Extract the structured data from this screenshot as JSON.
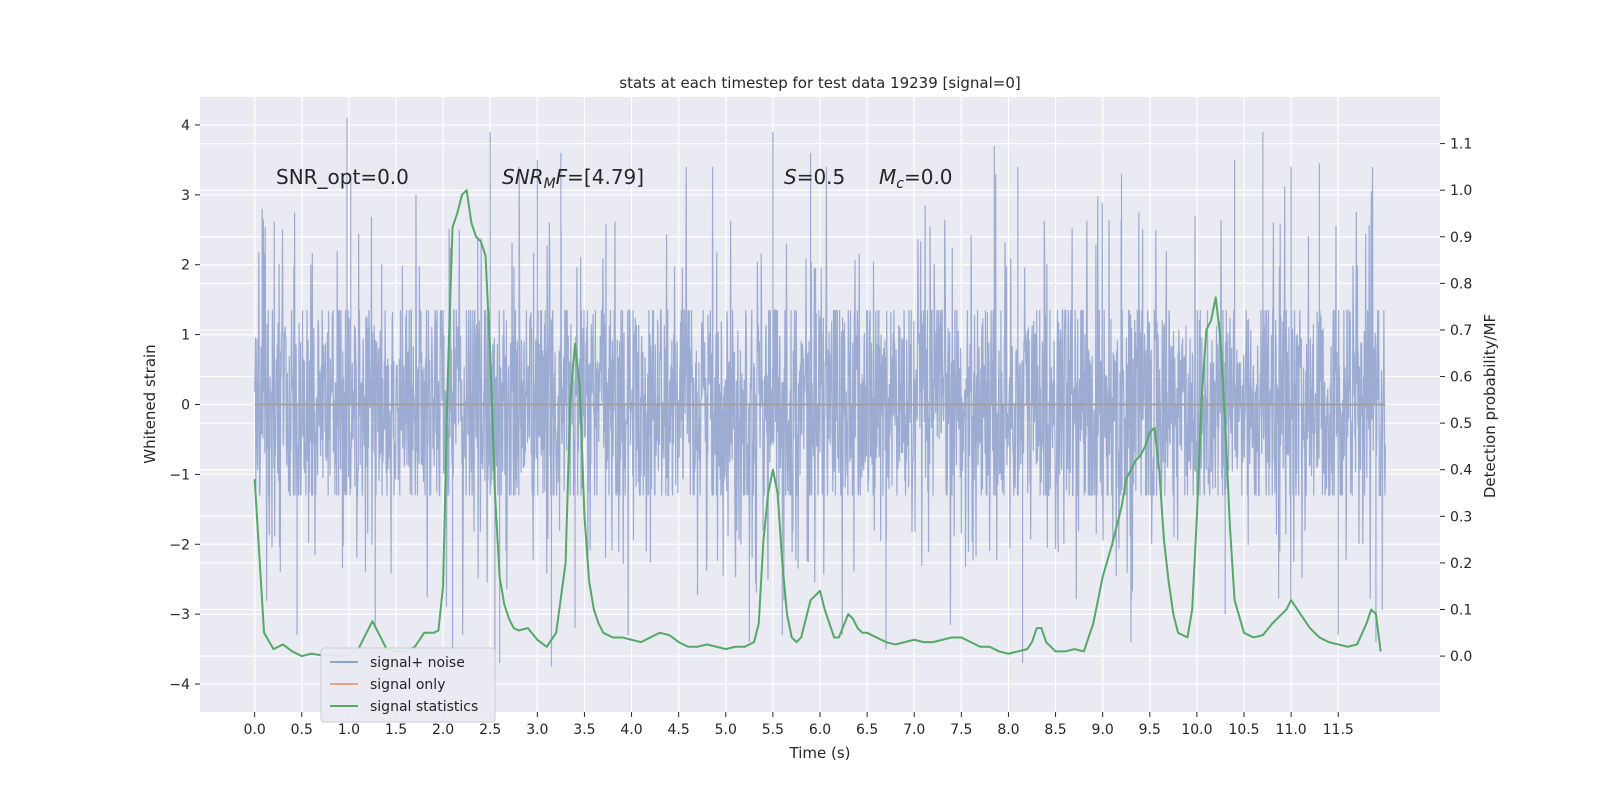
{
  "chart_data": {
    "type": "line",
    "title": "stats at each timestep for test data 19239 [signal=0]",
    "xlabel": "Time (s)",
    "ylabel_left": "Whitened strain",
    "ylabel_right": "Detection probability/MF",
    "xlim": [
      -0.58,
      12.58
    ],
    "ylim_left": [
      -4.4,
      4.4
    ],
    "ylim_right": [
      -0.12,
      1.2
    ],
    "x_ticks": [
      "0.0",
      "0.5",
      "1.0",
      "1.5",
      "2.0",
      "2.5",
      "3.0",
      "3.5",
      "4.0",
      "4.5",
      "5.0",
      "5.5",
      "6.0",
      "6.5",
      "7.0",
      "7.5",
      "8.0",
      "8.5",
      "9.0",
      "9.5",
      "10.0",
      "10.5",
      "11.0",
      "11.5"
    ],
    "y_left_ticks": [
      "4",
      "3",
      "2",
      "1",
      "0",
      "−1",
      "−2",
      "−3",
      "−4"
    ],
    "y_right_ticks": [
      "1.1",
      "1.0",
      "0.9",
      "0.8",
      "0.7",
      "0.6",
      "0.5",
      "0.4",
      "0.3",
      "0.2",
      "0.1",
      "0.0"
    ],
    "grid": true,
    "legend_position": "lower-left",
    "annotations": {
      "snr_opt": "SNR_opt=0.0",
      "snr_mf_base": "SNR",
      "snr_mf_sub": "M",
      "snr_mf_rest": "F=[4.79]",
      "s_var": "S",
      "s_val": "=0.5",
      "mc_var": "M",
      "mc_sub": "c",
      "mc_val": "=0.0"
    },
    "series": [
      {
        "name": "signal+ noise",
        "axis": "left",
        "color": "#8da0cb",
        "x_range": [
          0.0,
          12.0
        ],
        "band_limits": [
          -1.3,
          1.35
        ],
        "envelope_peaks": [
          [
            0.08,
            2.8
          ],
          [
            0.98,
            4.1
          ],
          [
            1.02,
            3.3
          ],
          [
            2.5,
            3.9
          ],
          [
            3.0,
            3.5
          ],
          [
            3.25,
            3.6
          ],
          [
            5.5,
            3.9
          ],
          [
            5.9,
            3.6
          ],
          [
            7.85,
            3.7
          ],
          [
            8.1,
            3.4
          ],
          [
            9.2,
            3.3
          ],
          [
            10.4,
            3.5
          ],
          [
            10.7,
            3.9
          ],
          [
            11.0,
            3.4
          ],
          [
            11.3,
            3.45
          ],
          [
            0.45,
            -3.3
          ],
          [
            1.28,
            -3.2
          ],
          [
            2.1,
            -3.6
          ],
          [
            2.55,
            -3.9
          ],
          [
            2.6,
            -3.7
          ],
          [
            3.15,
            -3.75
          ],
          [
            3.4,
            -3.2
          ],
          [
            5.25,
            -3.4
          ],
          [
            5.6,
            -3.3
          ],
          [
            6.7,
            -3.5
          ],
          [
            8.15,
            -3.7
          ],
          [
            9.3,
            -3.4
          ],
          [
            10.3,
            -3.0
          ],
          [
            11.9,
            -3.4
          ],
          [
            11.5,
            -3.3
          ]
        ]
      },
      {
        "name": "signal only",
        "axis": "left",
        "color": "#e8a188",
        "x": [
          0.0,
          12.0
        ],
        "y": [
          0.0,
          0.0
        ]
      },
      {
        "name": "signal statistics",
        "axis": "right",
        "color": "#55a868",
        "x": [
          0.0,
          0.1,
          0.2,
          0.3,
          0.4,
          0.5,
          0.6,
          0.7,
          0.8,
          0.9,
          1.0,
          1.1,
          1.2,
          1.25,
          1.3,
          1.4,
          1.5,
          1.6,
          1.7,
          1.8,
          1.9,
          1.95,
          2.0,
          2.05,
          2.1,
          2.15,
          2.2,
          2.25,
          2.3,
          2.35,
          2.4,
          2.45,
          2.5,
          2.55,
          2.6,
          2.65,
          2.7,
          2.75,
          2.8,
          2.9,
          3.0,
          3.1,
          3.2,
          3.3,
          3.35,
          3.4,
          3.45,
          3.5,
          3.55,
          3.6,
          3.65,
          3.7,
          3.8,
          3.9,
          4.0,
          4.1,
          4.2,
          4.3,
          4.4,
          4.5,
          4.6,
          4.7,
          4.8,
          4.9,
          5.0,
          5.1,
          5.2,
          5.3,
          5.35,
          5.4,
          5.45,
          5.5,
          5.55,
          5.6,
          5.65,
          5.7,
          5.75,
          5.8,
          5.9,
          6.0,
          6.05,
          6.1,
          6.15,
          6.2,
          6.3,
          6.35,
          6.4,
          6.45,
          6.5,
          6.6,
          6.7,
          6.8,
          6.9,
          7.0,
          7.1,
          7.2,
          7.3,
          7.4,
          7.5,
          7.6,
          7.7,
          7.8,
          7.9,
          8.0,
          8.1,
          8.2,
          8.25,
          8.3,
          8.35,
          8.4,
          8.5,
          8.6,
          8.7,
          8.8,
          8.9,
          9.0,
          9.1,
          9.2,
          9.25,
          9.3,
          9.35,
          9.4,
          9.45,
          9.5,
          9.55,
          9.6,
          9.65,
          9.7,
          9.75,
          9.8,
          9.9,
          9.95,
          10.0,
          10.05,
          10.1,
          10.15,
          10.2,
          10.25,
          10.3,
          10.35,
          10.4,
          10.5,
          10.6,
          10.7,
          10.8,
          10.9,
          10.95,
          11.0,
          11.1,
          11.2,
          11.3,
          11.4,
          11.5,
          11.6,
          11.7,
          11.8,
          11.85,
          11.9,
          11.95
        ],
        "y": [
          0.38,
          0.05,
          0.015,
          0.025,
          0.01,
          0.0,
          0.005,
          0.002,
          0.003,
          0.0,
          0.003,
          0.015,
          0.055,
          0.075,
          0.055,
          0.015,
          0.01,
          0.01,
          0.02,
          0.05,
          0.05,
          0.055,
          0.15,
          0.6,
          0.92,
          0.95,
          0.99,
          1.0,
          0.93,
          0.9,
          0.89,
          0.86,
          0.65,
          0.35,
          0.17,
          0.11,
          0.08,
          0.06,
          0.055,
          0.06,
          0.035,
          0.02,
          0.05,
          0.2,
          0.55,
          0.67,
          0.58,
          0.3,
          0.16,
          0.1,
          0.07,
          0.05,
          0.04,
          0.04,
          0.035,
          0.03,
          0.04,
          0.05,
          0.045,
          0.03,
          0.02,
          0.02,
          0.025,
          0.02,
          0.015,
          0.02,
          0.02,
          0.03,
          0.07,
          0.25,
          0.35,
          0.4,
          0.35,
          0.2,
          0.09,
          0.04,
          0.03,
          0.04,
          0.12,
          0.14,
          0.1,
          0.07,
          0.04,
          0.04,
          0.09,
          0.08,
          0.06,
          0.05,
          0.05,
          0.04,
          0.03,
          0.025,
          0.03,
          0.035,
          0.03,
          0.03,
          0.035,
          0.04,
          0.04,
          0.03,
          0.02,
          0.02,
          0.01,
          0.005,
          0.01,
          0.015,
          0.03,
          0.06,
          0.06,
          0.03,
          0.01,
          0.01,
          0.015,
          0.01,
          0.07,
          0.17,
          0.24,
          0.32,
          0.38,
          0.4,
          0.42,
          0.43,
          0.45,
          0.48,
          0.49,
          0.4,
          0.25,
          0.16,
          0.09,
          0.05,
          0.04,
          0.1,
          0.3,
          0.55,
          0.7,
          0.72,
          0.77,
          0.68,
          0.5,
          0.28,
          0.12,
          0.05,
          0.04,
          0.045,
          0.07,
          0.09,
          0.1,
          0.12,
          0.09,
          0.06,
          0.04,
          0.03,
          0.025,
          0.02,
          0.025,
          0.07,
          0.1,
          0.09,
          0.01
        ]
      }
    ]
  }
}
